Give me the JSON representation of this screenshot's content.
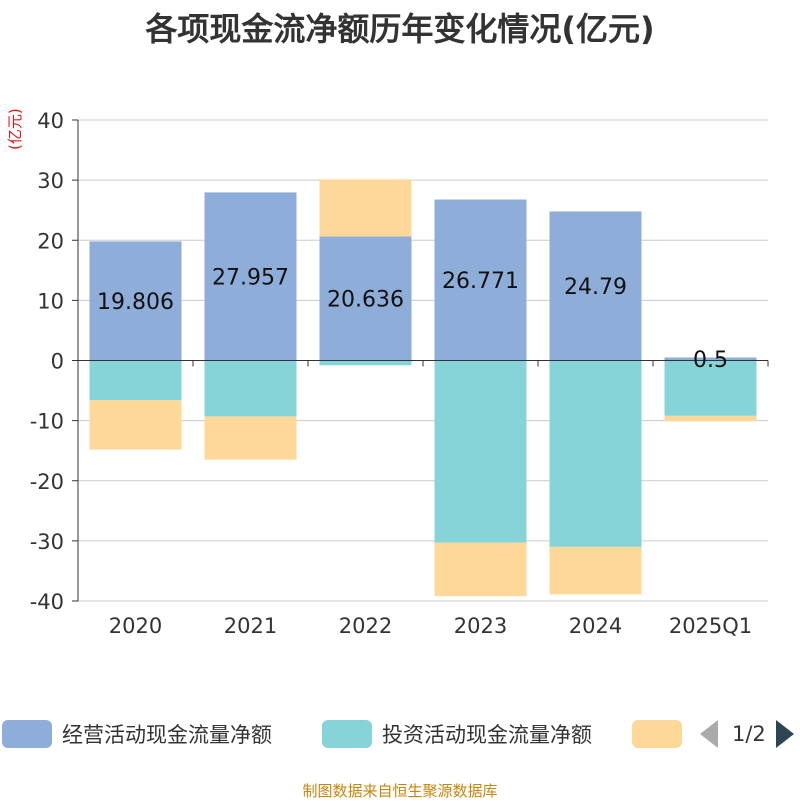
{
  "chart_data": {
    "type": "bar",
    "stacked": true,
    "title": "各项现金流净额历年变化情况(亿元)",
    "ylabel": "(亿元)",
    "categories": [
      "2020",
      "2021",
      "2022",
      "2023",
      "2024",
      "2025Q1"
    ],
    "ylim": [
      -40,
      40
    ],
    "yticks": [
      40,
      30,
      20,
      10,
      0,
      -10,
      -20,
      -30,
      -40
    ],
    "grid": true,
    "series": [
      {
        "name": "经营活动现金流量净额",
        "color": "#8eaed9",
        "values": [
          19.806,
          27.957,
          20.636,
          26.771,
          24.79,
          0.5
        ],
        "labels": [
          "19.806",
          "27.957",
          "20.636",
          "26.771",
          "24.79",
          "0.5"
        ]
      },
      {
        "name": "投资活动现金流量净额",
        "color": "#86d4d8",
        "values": [
          -6.6,
          -9.3,
          -0.8,
          -30.3,
          -31.0,
          -9.2
        ]
      },
      {
        "name": "",
        "color": "#fdd898",
        "values": [
          -8.2,
          -7.2,
          9.5,
          -8.9,
          -7.9,
          -0.9
        ]
      }
    ]
  },
  "legend": {
    "items": [
      {
        "label": "经营活动现金流量净额",
        "color": "#8eaed9"
      },
      {
        "label": "投资活动现金流量净额",
        "color": "#86d4d8"
      },
      {
        "label": "",
        "color": "#fdd898"
      }
    ],
    "page": "1/2"
  },
  "source": "制图数据来自恒生聚源数据库"
}
